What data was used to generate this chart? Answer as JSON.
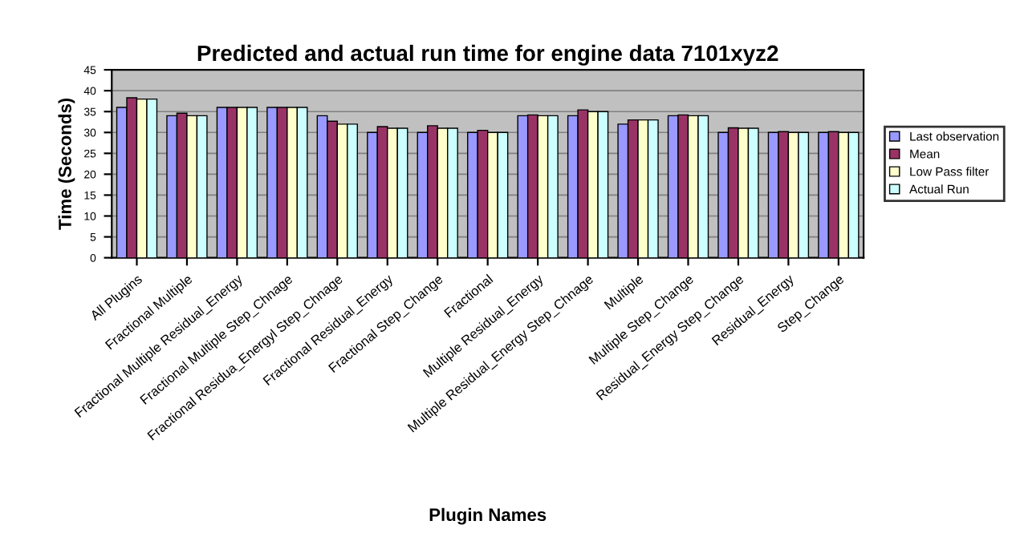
{
  "chart_data": {
    "type": "bar",
    "title": "Predicted and actual run time for engine data 7101xyz2",
    "xlabel": "Plugin Names",
    "ylabel": "Time (Seconds)",
    "categories": [
      "All Plugins",
      "Fractional Multiple",
      "Fractional Multiple Residual_Energy",
      "Fractional Multiple Step_Chnage",
      "Fractional Residua_Energyl Step_Chnage",
      "Fractional Residual_Energy",
      "Fractional Step_Change",
      "Fractional",
      "Multiple Residual_Energy",
      "Multiple Residual_Energy Step_Chnage",
      "Multiple",
      "Multiple Step_Change",
      "Residual_Energy Step_Change",
      "Residual_Energy",
      "Step_Change"
    ],
    "series": [
      {
        "name": "Last observation",
        "color": "#9999ff",
        "values": [
          36,
          34,
          36,
          36,
          34,
          30,
          30,
          30,
          34,
          34,
          32,
          34,
          30,
          30,
          30
        ]
      },
      {
        "name": "Mean",
        "color": "#993366",
        "values": [
          38.3,
          34.6,
          36,
          36,
          32.7,
          31.4,
          31.6,
          30.5,
          34.2,
          35.4,
          33,
          34.2,
          31.1,
          30.2,
          30.2
        ]
      },
      {
        "name": "Low Pass filter",
        "color": "#ffffcc",
        "values": [
          38,
          34,
          36,
          36,
          32,
          31,
          31,
          30,
          34,
          35,
          33,
          34,
          31,
          30,
          30
        ]
      },
      {
        "name": "Actual Run",
        "color": "#ccffff",
        "values": [
          38,
          34,
          36,
          36,
          32,
          31,
          31,
          30,
          34,
          35,
          33,
          34,
          31,
          30,
          30
        ]
      }
    ],
    "ylim": [
      0,
      45
    ],
    "yticks": [
      0,
      5,
      10,
      15,
      20,
      25,
      30,
      35,
      40,
      45
    ],
    "grid": "y",
    "legend": "right"
  }
}
